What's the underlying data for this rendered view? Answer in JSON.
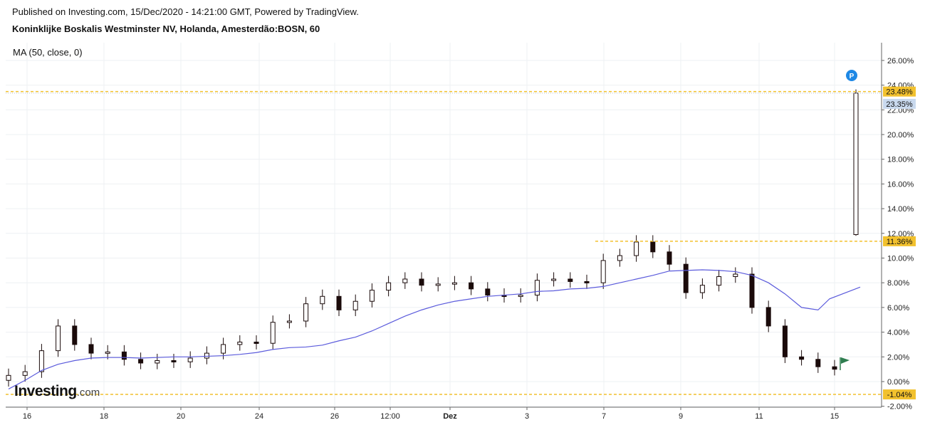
{
  "header": {
    "published": "Published on Investing.com, 15/Dec/2020 - 14:21:00 GMT, Powered by TradingView.",
    "symbol": "Koninklijke Boskalis Westminster NV, Holanda, Amesterdão:BOSN, 60"
  },
  "indicator_label": "MA (50, close, 0)",
  "logo": {
    "brand": "Investing",
    "suffix": ".com"
  },
  "colors": {
    "up_candle": "#ffffff",
    "down_candle": "#1a0a0a",
    "ma_line": "#5b5bdc",
    "tag_yellow": "#f2c12e",
    "tag_current": "#c9d9ee",
    "marker_p": "#1e88e5",
    "flag": "#2e7d4f"
  },
  "chart_data": {
    "type": "line",
    "y_axis": {
      "ylim": [
        -2,
        27
      ],
      "ticks": [
        {
          "value": 26,
          "label": "26.00%"
        },
        {
          "value": 24,
          "label": "24.00%"
        },
        {
          "value": 22,
          "label": "22.00%"
        },
        {
          "value": 20,
          "label": "20.00%"
        },
        {
          "value": 18,
          "label": "18.00%"
        },
        {
          "value": 16,
          "label": "16.00%"
        },
        {
          "value": 14,
          "label": "14.00%"
        },
        {
          "value": 12,
          "label": "12.00%"
        },
        {
          "value": 10,
          "label": "10.00%"
        },
        {
          "value": 8,
          "label": "8.00%"
        },
        {
          "value": 6,
          "label": "6.00%"
        },
        {
          "value": 4,
          "label": "4.00%"
        },
        {
          "value": 2,
          "label": "2.00%"
        },
        {
          "value": 0,
          "label": "0.00%"
        },
        {
          "value": -2,
          "label": "-2.00%"
        }
      ]
    },
    "x_ticks": [
      "16",
      "18",
      "20",
      "24",
      "26",
      "12:00",
      "Dez",
      "3",
      "7",
      "9",
      "11",
      "15"
    ],
    "grid": true,
    "price_tags": [
      {
        "value": 23.48,
        "label": "23.48%",
        "style": "yellow"
      },
      {
        "value": 23.35,
        "label": "23.35%",
        "style": "current"
      },
      {
        "value": 11.36,
        "label": "11.36%",
        "style": "yellow"
      },
      {
        "value": -1.04,
        "label": "-1.04%",
        "style": "yellow"
      }
    ],
    "series": [
      {
        "name": "MA (50, close, 0)",
        "values": [
          -0.6,
          0.1,
          0.9,
          1.4,
          1.7,
          1.9,
          1.95,
          1.95,
          1.9,
          1.95,
          2.0,
          2.0,
          2.05,
          2.1,
          2.2,
          2.35,
          2.6,
          2.75,
          2.8,
          2.95,
          3.3,
          3.6,
          4.1,
          4.7,
          5.3,
          5.8,
          6.2,
          6.5,
          6.7,
          6.9,
          7.0,
          7.1,
          7.3,
          7.35,
          7.5,
          7.55,
          7.7,
          8.0,
          8.3,
          8.6,
          8.95,
          9.0,
          9.05,
          9.0,
          8.9,
          8.6,
          8.0,
          7.1,
          6.0,
          5.8,
          6.7,
          7.65
        ],
        "x": [
          0,
          1,
          2,
          3,
          4,
          5,
          6,
          7,
          8,
          9,
          10,
          11,
          12,
          13,
          14,
          15,
          16,
          17,
          18,
          19,
          20,
          21,
          22,
          23,
          24,
          25,
          26,
          27,
          28,
          29,
          30,
          31,
          32,
          33,
          34,
          35,
          36,
          37,
          38,
          39,
          40,
          41,
          42,
          43,
          44,
          45,
          46,
          47,
          48,
          49,
          50,
          51
        ]
      },
      {
        "name": "",
        "values": [
          0.5,
          0.8,
          2.5,
          4.5,
          3.0,
          2.3,
          2.4,
          1.8,
          1.5,
          1.7,
          1.6,
          1.9,
          2.3,
          3.0,
          3.2,
          3.1,
          4.8,
          4.9,
          6.3,
          6.9,
          5.8,
          6.5,
          7.4,
          8.0,
          8.3,
          7.8,
          7.9,
          8.0,
          7.5,
          7.0,
          6.9,
          7.0,
          8.2,
          8.3,
          8.1,
          8.0,
          9.8,
          10.2,
          11.3,
          10.5,
          9.5,
          7.2,
          7.8,
          8.5,
          8.7,
          6.0,
          4.5,
          2.0,
          1.8,
          1.2,
          1.0,
          23.35
        ],
        "x": [
          0,
          1,
          2,
          3,
          4,
          5,
          6,
          7,
          8,
          9,
          10,
          11,
          12,
          13,
          14,
          15,
          16,
          17,
          18,
          19,
          20,
          21,
          22,
          23,
          24,
          25,
          26,
          27,
          28,
          29,
          30,
          31,
          32,
          33,
          34,
          35,
          36,
          37,
          38,
          39,
          40,
          41,
          42,
          43,
          44,
          45,
          46,
          47,
          48,
          49,
          50,
          51
        ]
      }
    ]
  }
}
